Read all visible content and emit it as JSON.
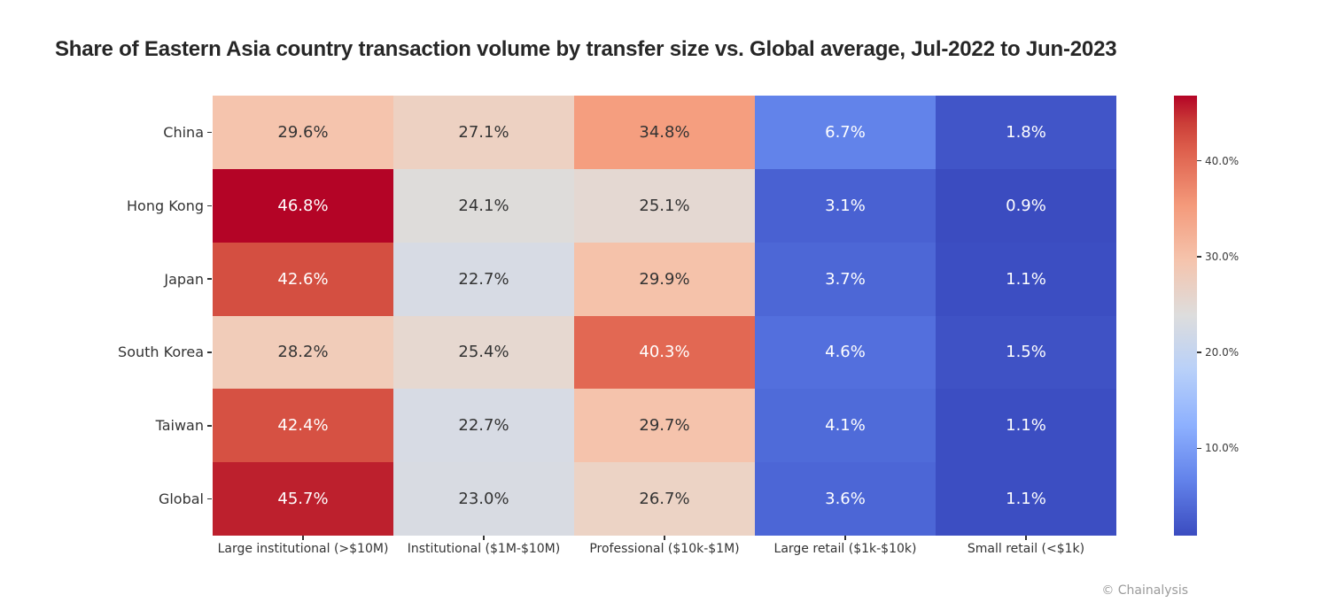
{
  "title": "Share of Eastern Asia country transaction volume by transfer size vs. Global average, Jul-2022 to Jun-2023",
  "footer": "© Chainalysis",
  "colors": {
    "background": "#ffffff",
    "title_text": "#262626",
    "axis_label_text": "#333333",
    "tick_mark": "#333333",
    "footer_text": "#9b9b9b",
    "cell_text_dark": "#333333",
    "cell_text_light": "#ffffff"
  },
  "chart_data": {
    "type": "heatmap",
    "title": "Share of Eastern Asia country transaction volume by transfer size vs. Global average, Jul-2022 to Jun-2023",
    "rows": [
      "China",
      "Hong Kong",
      "Japan",
      "South Korea",
      "Taiwan",
      "Global"
    ],
    "columns": [
      "Large institutional (>$10M)",
      "Institutional ($1M-$10M)",
      "Professional ($10k-$1M)",
      "Large retail ($1k-$10k)",
      "Small retail (<$1k)"
    ],
    "values": [
      [
        29.6,
        27.1,
        34.8,
        6.7,
        1.8
      ],
      [
        46.8,
        24.1,
        25.1,
        3.1,
        0.9
      ],
      [
        42.6,
        22.7,
        29.9,
        3.7,
        1.1
      ],
      [
        28.2,
        25.4,
        40.3,
        4.6,
        1.5
      ],
      [
        42.4,
        22.7,
        29.7,
        4.1,
        1.1
      ],
      [
        45.7,
        23.0,
        26.7,
        3.6,
        1.1
      ]
    ],
    "labels": [
      [
        "29.6%",
        "27.1%",
        "34.8%",
        "6.7%",
        "1.8%"
      ],
      [
        "46.8%",
        "24.1%",
        "25.1%",
        "3.1%",
        "0.9%"
      ],
      [
        "42.6%",
        "22.7%",
        "29.9%",
        "3.7%",
        "1.1%"
      ],
      [
        "28.2%",
        "25.4%",
        "40.3%",
        "4.6%",
        "1.5%"
      ],
      [
        "42.4%",
        "22.7%",
        "29.7%",
        "4.1%",
        "1.1%"
      ],
      [
        "45.7%",
        "23.0%",
        "26.7%",
        "3.6%",
        "1.1%"
      ]
    ],
    "cell_colors": [
      [
        "#f5c4ad",
        "#edd1c2",
        "#f59e7f",
        "#6283ea",
        "#4155c8"
      ],
      [
        "#b40426",
        "#dedcda",
        "#e4d8d2",
        "#4961d2",
        "#3b4cc0"
      ],
      [
        "#d44f41",
        "#d7dbe4",
        "#f5c2aa",
        "#4d67d6",
        "#3c4ec2"
      ],
      [
        "#f1ccb9",
        "#e6d8d0",
        "#e26853",
        "#536fdd",
        "#3f52c5"
      ],
      [
        "#d65143",
        "#d7dbe4",
        "#f5c3ac",
        "#4f6bd9",
        "#3c4ec2"
      ],
      [
        "#bd202d",
        "#d8dbe2",
        "#ecd3c5",
        "#4c66d6",
        "#3c4ec2"
      ]
    ],
    "colormap": "coolwarm",
    "vmin": 0.9,
    "vmax": 46.8,
    "grid": false,
    "colorbar": {
      "position": "right",
      "tick_labels": [
        "40.0%",
        "30.0%",
        "20.0%",
        "10.0%"
      ],
      "tick_values": [
        40,
        30,
        20,
        10
      ],
      "gradient_stops_top_to_bottom": [
        "#b40426 0%",
        "#cb3e38 6.25%",
        "#de604d 12.5%",
        "#f49a7b 25%",
        "#f5c4ad 37.5%",
        "#dddddd 50%",
        "#b8d0f9 62.5%",
        "#8db0fe 75%",
        "#6282ea 87.5%",
        "#3b4cc0 100%"
      ]
    }
  }
}
